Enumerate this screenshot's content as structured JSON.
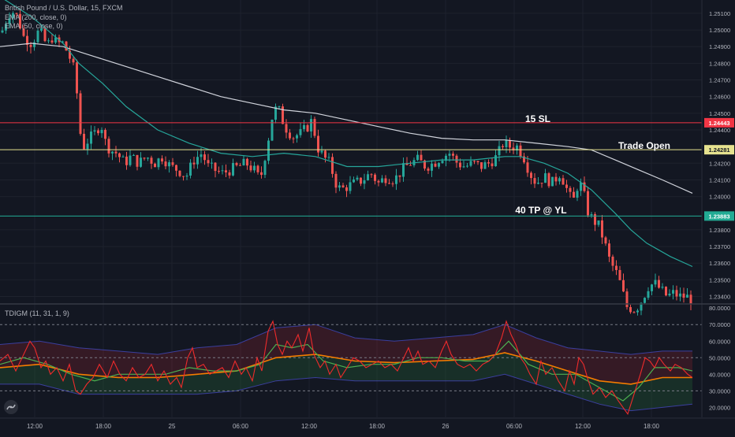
{
  "chart_data": {
    "type": "candlestick",
    "symbol_title": "British Pound / U.S. Dollar, 15, FXCM",
    "indicators": [
      "EMA (200, close, 0)",
      "EMA (50, close, 0)"
    ],
    "price_axis": {
      "ylim": [
        1.2336,
        1.2518
      ],
      "ticks": [
        "1.25100",
        "1.25000",
        "1.24900",
        "1.24800",
        "1.24700",
        "1.24600",
        "1.24500",
        "1.24400",
        "1.24200",
        "1.24100",
        "1.24000",
        "1.23800",
        "1.23700",
        "1.23600",
        "1.23500",
        "1.23400"
      ]
    },
    "levels": [
      {
        "label": "15 SL",
        "value": 1.24443,
        "tag": "1.24443",
        "color": "#f23645"
      },
      {
        "label": "Trade Open",
        "value": 1.24281,
        "tag": "1.24281",
        "color": "#e6e28f"
      },
      {
        "label": "40 TP @ YL",
        "value": 1.23883,
        "tag": "1.23883",
        "color": "#22ab94"
      }
    ],
    "time_axis": [
      "12:00",
      "18:00",
      "25",
      "06:00",
      "12:00",
      "18:00",
      "26",
      "06:00",
      "12:00",
      "18:00"
    ],
    "path": [
      [
        0,
        1.2496
      ],
      [
        8,
        1.2506
      ],
      [
        14,
        1.2512
      ],
      [
        22,
        1.2508
      ],
      [
        30,
        1.2496
      ],
      [
        40,
        1.2492
      ],
      [
        50,
        1.25
      ],
      [
        60,
        1.249
      ],
      [
        65,
        1.2496
      ],
      [
        72,
        1.2492
      ],
      [
        80,
        1.2492
      ],
      [
        88,
        1.2484
      ],
      [
        94,
        1.2476
      ],
      [
        98,
        1.246
      ],
      [
        102,
        1.2438
      ],
      [
        106,
        1.243
      ],
      [
        112,
        1.2434
      ],
      [
        120,
        1.2438
      ],
      [
        128,
        1.2444
      ],
      [
        134,
        1.2432
      ],
      [
        140,
        1.2428
      ],
      [
        148,
        1.2426
      ],
      [
        158,
        1.242
      ],
      [
        166,
        1.2424
      ],
      [
        176,
        1.242
      ],
      [
        186,
        1.2424
      ],
      [
        196,
        1.242
      ],
      [
        206,
        1.2424
      ],
      [
        216,
        1.2418
      ],
      [
        226,
        1.2416
      ],
      [
        236,
        1.2412
      ],
      [
        246,
        1.2422
      ],
      [
        256,
        1.2426
      ],
      [
        264,
        1.2418
      ],
      [
        272,
        1.2416
      ],
      [
        282,
        1.2414
      ],
      [
        292,
        1.2416
      ],
      [
        302,
        1.2418
      ],
      [
        312,
        1.242
      ],
      [
        322,
        1.2416
      ],
      [
        330,
        1.241
      ],
      [
        340,
        1.2434
      ],
      [
        346,
        1.245
      ],
      [
        352,
        1.2454
      ],
      [
        358,
        1.2446
      ],
      [
        364,
        1.244
      ],
      [
        372,
        1.2436
      ],
      [
        382,
        1.2438
      ],
      [
        390,
        1.2442
      ],
      [
        396,
        1.2446
      ],
      [
        402,
        1.243
      ],
      [
        410,
        1.2424
      ],
      [
        418,
        1.242
      ],
      [
        426,
        1.2408
      ],
      [
        432,
        1.2404
      ],
      [
        440,
        1.2406
      ],
      [
        450,
        1.2408
      ],
      [
        460,
        1.241
      ],
      [
        470,
        1.2414
      ],
      [
        480,
        1.2408
      ],
      [
        490,
        1.2412
      ],
      [
        500,
        1.241
      ],
      [
        510,
        1.2416
      ],
      [
        520,
        1.242
      ],
      [
        530,
        1.2422
      ],
      [
        540,
        1.2418
      ],
      [
        550,
        1.242
      ],
      [
        560,
        1.2424
      ],
      [
        570,
        1.2426
      ],
      [
        580,
        1.242
      ],
      [
        590,
        1.2418
      ],
      [
        600,
        1.242
      ],
      [
        610,
        1.2418
      ],
      [
        620,
        1.242
      ],
      [
        630,
        1.2424
      ],
      [
        638,
        1.2432
      ],
      [
        646,
        1.243
      ],
      [
        656,
        1.243
      ],
      [
        664,
        1.2424
      ],
      [
        672,
        1.2414
      ],
      [
        680,
        1.2408
      ],
      [
        690,
        1.2412
      ],
      [
        700,
        1.2408
      ],
      [
        710,
        1.2414
      ],
      [
        716,
        1.2408
      ],
      [
        722,
        1.24
      ],
      [
        728,
        1.2398
      ],
      [
        734,
        1.241
      ],
      [
        740,
        1.2402
      ],
      [
        746,
        1.239
      ],
      [
        752,
        1.2386
      ],
      [
        760,
        1.2382
      ],
      [
        768,
        1.237
      ],
      [
        774,
        1.236
      ],
      [
        780,
        1.2356
      ],
      [
        788,
        1.2346
      ],
      [
        794,
        1.2334
      ],
      [
        806,
        1.2332
      ],
      [
        814,
        1.2338
      ],
      [
        822,
        1.2346
      ],
      [
        830,
        1.2348
      ],
      [
        838,
        1.2344
      ],
      [
        846,
        1.234
      ],
      [
        854,
        1.2342
      ],
      [
        862,
        1.234
      ],
      [
        870,
        1.234
      ],
      [
        878,
        1.2338
      ]
    ],
    "ema50": [
      [
        0,
        1.252
      ],
      [
        20,
        1.2514
      ],
      [
        40,
        1.2508
      ],
      [
        60,
        1.25
      ],
      [
        80,
        1.2492
      ],
      [
        100,
        1.248
      ],
      [
        130,
        1.2468
      ],
      [
        160,
        1.2454
      ],
      [
        200,
        1.244
      ],
      [
        240,
        1.2432
      ],
      [
        280,
        1.2426
      ],
      [
        320,
        1.2424
      ],
      [
        360,
        1.2426
      ],
      [
        400,
        1.2424
      ],
      [
        440,
        1.2418
      ],
      [
        480,
        1.2418
      ],
      [
        520,
        1.242
      ],
      [
        560,
        1.2422
      ],
      [
        600,
        1.2422
      ],
      [
        640,
        1.2424
      ],
      [
        660,
        1.2424
      ],
      [
        690,
        1.242
      ],
      [
        720,
        1.2414
      ],
      [
        750,
        1.2404
      ],
      [
        780,
        1.239
      ],
      [
        800,
        1.238
      ],
      [
        820,
        1.2372
      ],
      [
        850,
        1.2364
      ],
      [
        878,
        1.2358
      ]
    ],
    "ema200": [
      [
        0,
        1.249
      ],
      [
        40,
        1.2492
      ],
      [
        80,
        1.249
      ],
      [
        120,
        1.2484
      ],
      [
        160,
        1.2478
      ],
      [
        200,
        1.2472
      ],
      [
        240,
        1.2466
      ],
      [
        280,
        1.246
      ],
      [
        320,
        1.2456
      ],
      [
        360,
        1.2452
      ],
      [
        400,
        1.245
      ],
      [
        440,
        1.2446
      ],
      [
        480,
        1.2442
      ],
      [
        520,
        1.2438
      ],
      [
        560,
        1.2435
      ],
      [
        600,
        1.2434
      ],
      [
        640,
        1.2434
      ],
      [
        680,
        1.2432
      ],
      [
        720,
        1.243
      ],
      [
        750,
        1.2428
      ],
      [
        780,
        1.2422
      ],
      [
        810,
        1.2416
      ],
      [
        840,
        1.241
      ],
      [
        878,
        1.2402
      ]
    ],
    "oscillator": {
      "title": "TDIGM (11, 31, 1, 9)",
      "ylim": [
        14,
        82
      ],
      "ticks": [
        "80.0000",
        "70.0000",
        "60.0000",
        "50.0000",
        "40.0000",
        "30.0000",
        "20.0000"
      ],
      "dashed_levels": [
        70,
        50,
        30
      ],
      "rsi": [
        [
          0,
          48
        ],
        [
          10,
          52
        ],
        [
          20,
          42
        ],
        [
          28,
          50
        ],
        [
          38,
          60
        ],
        [
          44,
          56
        ],
        [
          52,
          44
        ],
        [
          58,
          48
        ],
        [
          64,
          40
        ],
        [
          72,
          44
        ],
        [
          80,
          36
        ],
        [
          88,
          46
        ],
        [
          96,
          30
        ],
        [
          102,
          28
        ],
        [
          110,
          34
        ],
        [
          118,
          38
        ],
        [
          126,
          46
        ],
        [
          136,
          38
        ],
        [
          144,
          48
        ],
        [
          152,
          40
        ],
        [
          160,
          36
        ],
        [
          168,
          44
        ],
        [
          176,
          38
        ],
        [
          184,
          40
        ],
        [
          192,
          46
        ],
        [
          200,
          36
        ],
        [
          208,
          42
        ],
        [
          216,
          34
        ],
        [
          224,
          38
        ],
        [
          230,
          32
        ],
        [
          238,
          50
        ],
        [
          244,
          56
        ],
        [
          250,
          44
        ],
        [
          258,
          46
        ],
        [
          266,
          40
        ],
        [
          274,
          42
        ],
        [
          282,
          44
        ],
        [
          290,
          38
        ],
        [
          298,
          48
        ],
        [
          306,
          40
        ],
        [
          312,
          44
        ],
        [
          320,
          36
        ],
        [
          326,
          50
        ],
        [
          332,
          42
        ],
        [
          340,
          66
        ],
        [
          346,
          72
        ],
        [
          352,
          58
        ],
        [
          358,
          52
        ],
        [
          364,
          60
        ],
        [
          370,
          56
        ],
        [
          378,
          64
        ],
        [
          384,
          54
        ],
        [
          392,
          68
        ],
        [
          398,
          52
        ],
        [
          406,
          44
        ],
        [
          412,
          48
        ],
        [
          418,
          40
        ],
        [
          426,
          46
        ],
        [
          432,
          38
        ],
        [
          440,
          44
        ],
        [
          448,
          50
        ],
        [
          456,
          48
        ],
        [
          464,
          44
        ],
        [
          472,
          46
        ],
        [
          480,
          48
        ],
        [
          488,
          44
        ],
        [
          496,
          46
        ],
        [
          504,
          42
        ],
        [
          512,
          50
        ],
        [
          518,
          56
        ],
        [
          524,
          48
        ],
        [
          530,
          54
        ],
        [
          536,
          46
        ],
        [
          544,
          48
        ],
        [
          552,
          44
        ],
        [
          560,
          54
        ],
        [
          566,
          60
        ],
        [
          572,
          52
        ],
        [
          580,
          46
        ],
        [
          588,
          44
        ],
        [
          596,
          46
        ],
        [
          604,
          42
        ],
        [
          612,
          46
        ],
        [
          620,
          48
        ],
        [
          628,
          52
        ],
        [
          636,
          62
        ],
        [
          642,
          72
        ],
        [
          648,
          64
        ],
        [
          654,
          58
        ],
        [
          660,
          50
        ],
        [
          666,
          46
        ],
        [
          672,
          40
        ],
        [
          680,
          34
        ],
        [
          686,
          48
        ],
        [
          692,
          40
        ],
        [
          700,
          44
        ],
        [
          708,
          36
        ],
        [
          716,
          30
        ],
        [
          722,
          42
        ],
        [
          728,
          34
        ],
        [
          734,
          50
        ],
        [
          740,
          46
        ],
        [
          746,
          36
        ],
        [
          752,
          28
        ],
        [
          760,
          32
        ],
        [
          768,
          26
        ],
        [
          776,
          30
        ],
        [
          784,
          24
        ],
        [
          790,
          20
        ],
        [
          796,
          16
        ],
        [
          804,
          28
        ],
        [
          812,
          40
        ],
        [
          818,
          50
        ],
        [
          824,
          48
        ],
        [
          830,
          44
        ],
        [
          836,
          50
        ],
        [
          842,
          46
        ],
        [
          850,
          42
        ],
        [
          856,
          46
        ],
        [
          864,
          44
        ],
        [
          872,
          40
        ],
        [
          878,
          38
        ]
      ],
      "signal": [
        [
          0,
          46
        ],
        [
          30,
          50
        ],
        [
          60,
          46
        ],
        [
          90,
          40
        ],
        [
          120,
          36
        ],
        [
          150,
          40
        ],
        [
          180,
          40
        ],
        [
          210,
          40
        ],
        [
          240,
          44
        ],
        [
          270,
          42
        ],
        [
          300,
          42
        ],
        [
          330,
          46
        ],
        [
          350,
          58
        ],
        [
          370,
          56
        ],
        [
          390,
          58
        ],
        [
          410,
          48
        ],
        [
          440,
          44
        ],
        [
          470,
          46
        ],
        [
          500,
          46
        ],
        [
          530,
          50
        ],
        [
          560,
          50
        ],
        [
          590,
          48
        ],
        [
          620,
          48
        ],
        [
          645,
          60
        ],
        [
          670,
          46
        ],
        [
          700,
          40
        ],
        [
          730,
          40
        ],
        [
          760,
          32
        ],
        [
          790,
          24
        ],
        [
          810,
          32
        ],
        [
          830,
          44
        ],
        [
          860,
          44
        ],
        [
          878,
          42
        ]
      ],
      "base": [
        [
          0,
          44
        ],
        [
          50,
          46
        ],
        [
          100,
          40
        ],
        [
          150,
          38
        ],
        [
          200,
          38
        ],
        [
          250,
          40
        ],
        [
          300,
          42
        ],
        [
          350,
          50
        ],
        [
          400,
          52
        ],
        [
          450,
          48
        ],
        [
          500,
          47
        ],
        [
          550,
          48
        ],
        [
          600,
          49
        ],
        [
          640,
          53
        ],
        [
          680,
          48
        ],
        [
          720,
          42
        ],
        [
          760,
          36
        ],
        [
          800,
          34
        ],
        [
          840,
          38
        ],
        [
          878,
          38
        ]
      ],
      "upper": [
        [
          0,
          58
        ],
        [
          50,
          60
        ],
        [
          100,
          56
        ],
        [
          150,
          54
        ],
        [
          200,
          52
        ],
        [
          250,
          56
        ],
        [
          300,
          58
        ],
        [
          350,
          68
        ],
        [
          400,
          70
        ],
        [
          450,
          62
        ],
        [
          500,
          60
        ],
        [
          550,
          62
        ],
        [
          600,
          64
        ],
        [
          640,
          70
        ],
        [
          680,
          62
        ],
        [
          720,
          56
        ],
        [
          760,
          54
        ],
        [
          800,
          52
        ],
        [
          840,
          54
        ],
        [
          878,
          54
        ]
      ],
      "lower": [
        [
          0,
          34
        ],
        [
          50,
          34
        ],
        [
          100,
          28
        ],
        [
          150,
          28
        ],
        [
          200,
          28
        ],
        [
          250,
          28
        ],
        [
          300,
          30
        ],
        [
          350,
          36
        ],
        [
          400,
          38
        ],
        [
          450,
          36
        ],
        [
          500,
          36
        ],
        [
          550,
          36
        ],
        [
          600,
          36
        ],
        [
          640,
          40
        ],
        [
          680,
          34
        ],
        [
          720,
          28
        ],
        [
          760,
          22
        ],
        [
          800,
          18
        ],
        [
          840,
          20
        ],
        [
          878,
          22
        ]
      ]
    }
  }
}
